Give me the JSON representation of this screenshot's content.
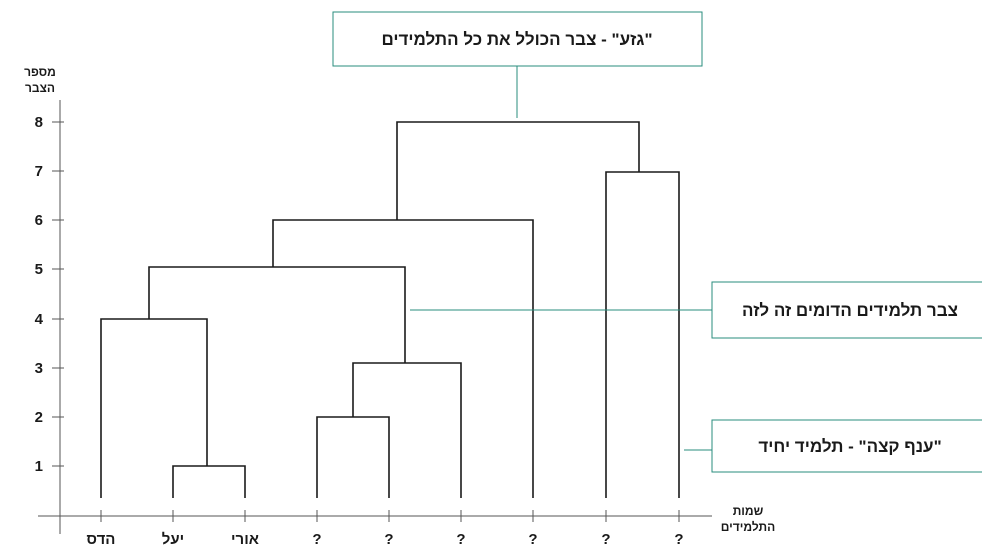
{
  "y_axis": {
    "label_line1": "מספר",
    "label_line2": "הצבר",
    "ticks": [
      "1",
      "2",
      "3",
      "4",
      "5",
      "6",
      "7",
      "8"
    ]
  },
  "x_axis": {
    "label_line1": "שמות",
    "label_line2": "התלמידים",
    "students": [
      "הדס",
      "יעל",
      "אורי",
      "?",
      "?",
      "?",
      "?",
      "?",
      "?"
    ]
  },
  "callouts": {
    "trunk": "\"גזע\" - צבר הכולל את כל התלמידים",
    "cluster": "צבר תלמידים הדומים זה לזה",
    "leaf": "\"ענף קצה\" - תלמיד יחיד"
  },
  "colors": {
    "accent": "#2a8c7e",
    "line": "#1a1a1a"
  }
}
